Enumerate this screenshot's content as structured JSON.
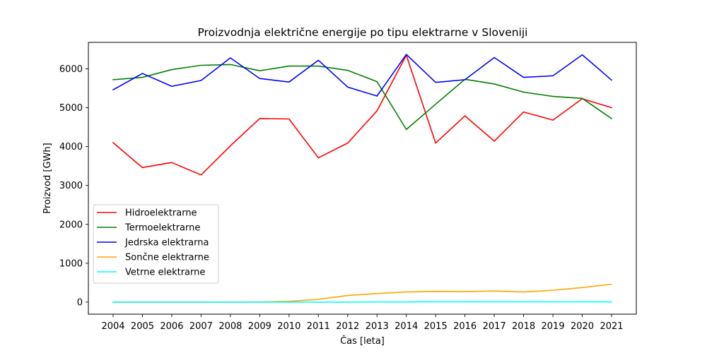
{
  "chart_data": {
    "type": "line",
    "title": "Proizvodnja električne energije po tipu elektrarne v Sloveniji",
    "xlabel": "Čas [leta]",
    "ylabel": "Proizvod [GWh]",
    "x": [
      "2004",
      "2005",
      "2006",
      "2007",
      "2008",
      "2009",
      "2010",
      "2011",
      "2012",
      "2013",
      "2014",
      "2015",
      "2016",
      "2017",
      "2018",
      "2019",
      "2020",
      "2021"
    ],
    "ylim": [
      -310,
      6680
    ],
    "yticks": [
      0,
      1000,
      2000,
      3000,
      4000,
      5000,
      6000
    ],
    "yticklabels": [
      "0",
      "1000",
      "2000",
      "3000",
      "4000",
      "5000",
      "6000"
    ],
    "grid": false,
    "legend_position": "center-left",
    "series": [
      {
        "name": "Hidroelektrarne",
        "color": "#ff0000",
        "values": [
          4100,
          3460,
          3590,
          3270,
          4020,
          4720,
          4710,
          3710,
          4090,
          4920,
          6350,
          4090,
          4790,
          4140,
          4890,
          4680,
          5230,
          5000
        ]
      },
      {
        "name": "Termoelektrarne",
        "color": "#008000",
        "values": [
          5720,
          5780,
          5980,
          6090,
          6110,
          5950,
          6070,
          6070,
          5960,
          5670,
          4440,
          5090,
          5730,
          5610,
          5400,
          5290,
          5240,
          4720
        ]
      },
      {
        "name": "Jedrska elektrarna",
        "color": "#0000ff",
        "values": [
          5460,
          5880,
          5550,
          5700,
          6280,
          5750,
          5660,
          6220,
          5530,
          5300,
          6370,
          5650,
          5720,
          6290,
          5780,
          5820,
          6360,
          5710
        ]
      },
      {
        "name": "Sončne elektrarne",
        "color": "#ffa500",
        "values": [
          0,
          0,
          0,
          0,
          2,
          5,
          20,
          70,
          170,
          220,
          260,
          275,
          270,
          285,
          260,
          305,
          375,
          460
        ]
      },
      {
        "name": "Vetrne elektrarne",
        "color": "#00ffff",
        "values": [
          0,
          0,
          0,
          0,
          0,
          0,
          0,
          0,
          0,
          4,
          4,
          6,
          6,
          6,
          6,
          6,
          6,
          6
        ]
      }
    ]
  }
}
